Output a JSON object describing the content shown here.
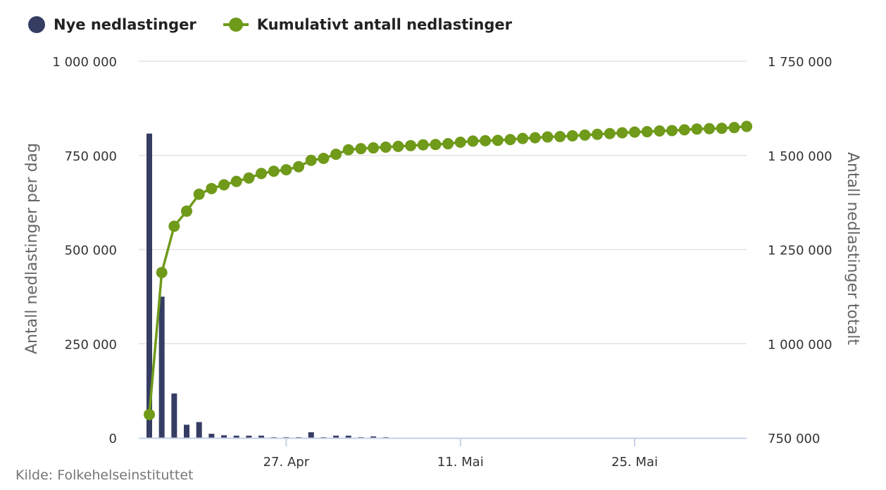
{
  "legend": {
    "series1": "Nye nedlastinger",
    "series2": "Kumulativt antall nedlastinger"
  },
  "source": "Kilde: Folkehelseinstituttet",
  "colors": {
    "bars": "#363d63",
    "line": "#6f9a1a",
    "grid": "#e3e3e3",
    "axis": "#c6d1e6"
  },
  "chart_data": {
    "type": "bar+line",
    "x_start": "2020-04-16",
    "x_end": "2020-06-03",
    "x_ticks": [
      {
        "date": "2020-04-27",
        "label": "27. Apr"
      },
      {
        "date": "2020-05-11",
        "label": "11. Mai"
      },
      {
        "date": "2020-05-25",
        "label": "25. Mai"
      }
    ],
    "y_left": {
      "label": "Antall nedlastinger per dag",
      "range": [
        0,
        1000000
      ],
      "ticks": [
        0,
        250000,
        500000,
        750000,
        1000000
      ],
      "tick_labels": [
        "0",
        "250 000",
        "500 000",
        "750 000",
        "1 000 000"
      ]
    },
    "y_right": {
      "label": "Antall nedlastinger totalt",
      "range": [
        750000,
        1750000
      ],
      "ticks": [
        750000,
        1000000,
        1250000,
        1500000,
        1750000
      ],
      "tick_labels": [
        "750 000",
        "1 000 000",
        "1 250 000",
        "1 500 000",
        "1 750 000"
      ]
    },
    "series": [
      {
        "name": "Nye nedlastinger",
        "type": "bar",
        "axis": "left",
        "x": [
          "2020-04-16",
          "2020-04-17",
          "2020-04-18",
          "2020-04-19",
          "2020-04-20",
          "2020-04-21",
          "2020-04-22",
          "2020-04-23",
          "2020-04-24",
          "2020-04-25",
          "2020-04-26",
          "2020-04-27",
          "2020-04-28",
          "2020-04-29",
          "2020-04-30",
          "2020-05-01",
          "2020-05-02",
          "2020-05-03",
          "2020-05-04",
          "2020-05-05"
        ],
        "values": [
          808000,
          375000,
          118000,
          35000,
          42000,
          11000,
          7000,
          6000,
          6000,
          6000,
          2000,
          2000,
          2000,
          15000,
          2000,
          6000,
          6000,
          2000,
          4000,
          2000
        ]
      },
      {
        "name": "Kumulativt antall nedlastinger",
        "type": "line",
        "axis": "right",
        "x": [
          "2020-04-16",
          "2020-04-17",
          "2020-04-18",
          "2020-04-19",
          "2020-04-20",
          "2020-04-21",
          "2020-04-22",
          "2020-04-23",
          "2020-04-24",
          "2020-04-25",
          "2020-04-26",
          "2020-04-27",
          "2020-04-28",
          "2020-04-29",
          "2020-04-30",
          "2020-05-01",
          "2020-05-02",
          "2020-05-03",
          "2020-05-04",
          "2020-05-05",
          "2020-05-06",
          "2020-05-07",
          "2020-05-08",
          "2020-05-09",
          "2020-05-10",
          "2020-05-11",
          "2020-05-12",
          "2020-05-13",
          "2020-05-14",
          "2020-05-15",
          "2020-05-16",
          "2020-05-17",
          "2020-05-18",
          "2020-05-19",
          "2020-05-20",
          "2020-05-21",
          "2020-05-22",
          "2020-05-23",
          "2020-05-24",
          "2020-05-25",
          "2020-05-26",
          "2020-05-27",
          "2020-05-28",
          "2020-05-29",
          "2020-05-30",
          "2020-05-31",
          "2020-06-01",
          "2020-06-02",
          "2020-06-03"
        ],
        "values": [
          812000,
          1189000,
          1312000,
          1352000,
          1397000,
          1412000,
          1422000,
          1431000,
          1440000,
          1452000,
          1458000,
          1462000,
          1470000,
          1487000,
          1492000,
          1503000,
          1515000,
          1518000,
          1520000,
          1522000,
          1524000,
          1526000,
          1528000,
          1529000,
          1531000,
          1535000,
          1538000,
          1539000,
          1540000,
          1542000,
          1545000,
          1547000,
          1549000,
          1550000,
          1552000,
          1554000,
          1556000,
          1558000,
          1560000,
          1562000,
          1563000,
          1565000,
          1566000,
          1568000,
          1570000,
          1571000,
          1572000,
          1574000,
          1577000
        ]
      }
    ]
  }
}
